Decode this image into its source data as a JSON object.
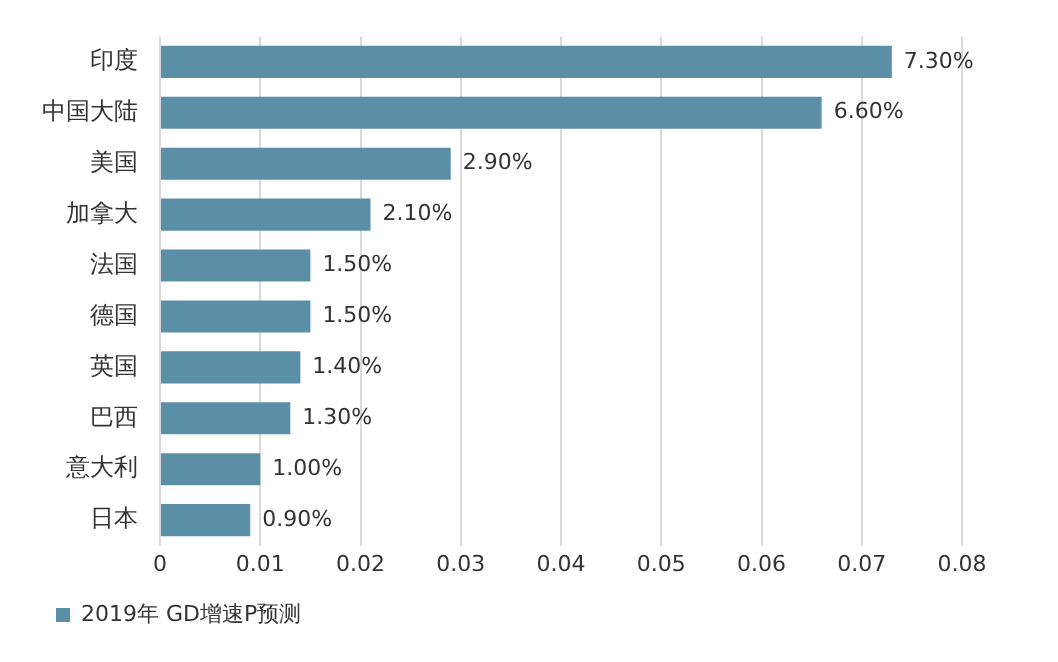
{
  "chart_data": {
    "type": "bar",
    "orientation": "horizontal",
    "categories": [
      "印度",
      "中国大陆",
      "美国",
      "加拿大",
      "法国",
      "德国",
      "英国",
      "巴西",
      "意大利",
      "日本"
    ],
    "series": [
      {
        "name": "2019年 GD增速P预测",
        "color": "#5b8fa8",
        "values": [
          0.073,
          0.066,
          0.029,
          0.021,
          0.015,
          0.015,
          0.014,
          0.013,
          0.01,
          0.009
        ],
        "value_labels": [
          "7.30%",
          "6.60%",
          "2.90%",
          "2.10%",
          "1.50%",
          "1.50%",
          "1.40%",
          "1.30%",
          "1.00%",
          "0.90%"
        ]
      }
    ],
    "xlim": [
      0,
      0.08
    ],
    "xticks": [
      0,
      0.01,
      0.02,
      0.03,
      0.04,
      0.05,
      0.06,
      0.07,
      0.08
    ],
    "grid": "x",
    "legend": "bottom left"
  }
}
